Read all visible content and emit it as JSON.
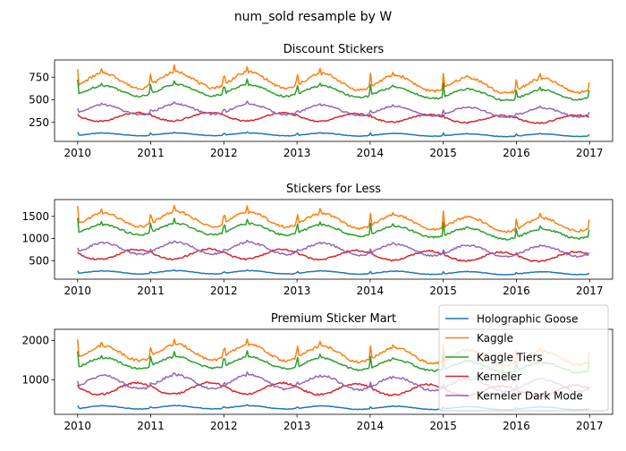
{
  "figure": {
    "suptitle": "num_sold resample by W"
  },
  "colors": {
    "Holographic Goose": "#1f77b4",
    "Kaggle": "#ff7f0e",
    "Kaggle Tiers": "#2ca02c",
    "Kerneler": "#d62728",
    "Kerneler Dark Mode": "#9467bd"
  },
  "legend": {
    "placement": "lower-right of third panel",
    "entries": [
      "Holographic Goose",
      "Kaggle",
      "Kaggle Tiers",
      "Kerneler",
      "Kerneler Dark Mode"
    ]
  },
  "chart_data": [
    {
      "type": "line",
      "title": "Discount Stickers",
      "xlabel": "",
      "ylabel": "",
      "xlim": [
        2010,
        2017
      ],
      "xticks": [
        "2010",
        "2011",
        "2012",
        "2013",
        "2014",
        "2015",
        "2016",
        "2017"
      ],
      "ylim": [
        40,
        940
      ],
      "yticks": [
        250,
        500,
        750
      ],
      "series": [
        {
          "name": "Holographic Goose",
          "level": 115,
          "amp": 15,
          "phase": 0,
          "spike": 40,
          "spike2": 10
        },
        {
          "name": "Kaggle",
          "level": 700,
          "amp": 85,
          "phase": 0,
          "spike": 200,
          "spike2": 80
        },
        {
          "name": "Kaggle Tiers",
          "level": 590,
          "amp": 60,
          "phase": 0,
          "spike": 170,
          "spike2": 60
        },
        {
          "name": "Kerneler",
          "level": 305,
          "amp": 45,
          "phase": 0.55,
          "spike": 20,
          "spike2": 0
        },
        {
          "name": "Kerneler Dark Mode",
          "level": 385,
          "amp": 55,
          "phase": 0.0,
          "spike": 50,
          "spike2": 30
        }
      ]
    },
    {
      "type": "line",
      "title": "Stickers for Less",
      "xlabel": "",
      "ylabel": "",
      "xlim": [
        2010,
        2017
      ],
      "xticks": [
        "2010",
        "2011",
        "2012",
        "2013",
        "2014",
        "2015",
        "2016",
        "2017"
      ],
      "ylim": [
        80,
        1880
      ],
      "yticks": [
        500,
        1000,
        1500
      ],
      "series": [
        {
          "name": "Holographic Goose",
          "level": 230,
          "amp": 35,
          "phase": 0,
          "spike": 60,
          "spike2": 15
        },
        {
          "name": "Kaggle",
          "level": 1400,
          "amp": 160,
          "phase": 0,
          "spike": 420,
          "spike2": 160
        },
        {
          "name": "Kaggle Tiers",
          "level": 1180,
          "amp": 120,
          "phase": 0,
          "spike": 350,
          "spike2": 130
        },
        {
          "name": "Kerneler",
          "level": 630,
          "amp": 110,
          "phase": 0.55,
          "spike": 40,
          "spike2": 0
        },
        {
          "name": "Kerneler Dark Mode",
          "level": 760,
          "amp": 130,
          "phase": 0.0,
          "spike": 110,
          "spike2": 60
        }
      ]
    },
    {
      "type": "line",
      "title": "Premium Sticker Mart",
      "xlabel": "",
      "ylabel": "",
      "xlim": [
        2010,
        2017
      ],
      "xticks": [
        "2010",
        "2011",
        "2012",
        "2013",
        "2014",
        "2015",
        "2016",
        "2017"
      ],
      "ylim": [
        120,
        2280
      ],
      "yticks": [
        1000,
        2000
      ],
      "series": [
        {
          "name": "Holographic Goose",
          "level": 290,
          "amp": 40,
          "phase": 0,
          "spike": 70,
          "spike2": 20
        },
        {
          "name": "Kaggle",
          "level": 1650,
          "amp": 190,
          "phase": 0,
          "spike": 500,
          "spike2": 190
        },
        {
          "name": "Kaggle Tiers",
          "level": 1400,
          "amp": 140,
          "phase": 0,
          "spike": 420,
          "spike2": 150
        },
        {
          "name": "Kerneler",
          "level": 760,
          "amp": 140,
          "phase": 0.55,
          "spike": 50,
          "spike2": 0
        },
        {
          "name": "Kerneler Dark Mode",
          "level": 920,
          "amp": 170,
          "phase": 0.0,
          "spike": 140,
          "spike2": 70
        }
      ]
    }
  ]
}
